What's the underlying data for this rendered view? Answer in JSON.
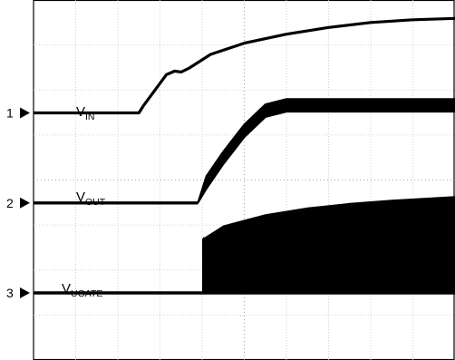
{
  "chart_data": {
    "type": "line",
    "title": "",
    "xlabel": "",
    "ylabel": "",
    "grid": true,
    "x_divisions": 10,
    "y_divisions": 8,
    "x_range": [
      0,
      10
    ],
    "y_range": [
      0,
      8
    ],
    "channels": [
      {
        "marker": "1",
        "label_main": "V",
        "label_sub": "IN",
        "color": "#000000",
        "baseline_div": 5.45,
        "points": [
          [
            0,
            5.45
          ],
          [
            2.5,
            5.45
          ],
          [
            2.6,
            5.6
          ],
          [
            3.15,
            6.3
          ],
          [
            3.35,
            6.38
          ],
          [
            3.5,
            6.36
          ],
          [
            3.7,
            6.45
          ],
          [
            4.2,
            6.75
          ],
          [
            5.0,
            7.0
          ],
          [
            6.0,
            7.2
          ],
          [
            7.0,
            7.35
          ],
          [
            8.0,
            7.46
          ],
          [
            9.0,
            7.52
          ],
          [
            10.0,
            7.55
          ]
        ]
      },
      {
        "marker": "2",
        "label_main": "V",
        "label_sub": "OUT",
        "color": "#000000",
        "baseline_div": 3.45,
        "envelope_points": [
          [
            3.9,
            3.45
          ],
          [
            4.1,
            3.9
          ],
          [
            4.5,
            4.45
          ],
          [
            5.0,
            5.05
          ],
          [
            5.5,
            5.5
          ],
          [
            6.0,
            5.62
          ],
          [
            10.0,
            5.62
          ]
        ],
        "band_width_div": 0.28,
        "points": [
          [
            0,
            3.45
          ],
          [
            3.9,
            3.45
          ]
        ]
      },
      {
        "marker": "3",
        "label_main": "V",
        "label_sub": "UGATE",
        "color": "#000000",
        "baseline_div": 1.45,
        "burst_start_div": 4.0,
        "envelope_top": [
          [
            4.0,
            2.65
          ],
          [
            4.5,
            2.95
          ],
          [
            5.5,
            3.2
          ],
          [
            6.5,
            3.35
          ],
          [
            7.5,
            3.45
          ],
          [
            8.5,
            3.52
          ],
          [
            10.0,
            3.6
          ]
        ],
        "points": [
          [
            0,
            1.45
          ],
          [
            10.0,
            1.45
          ]
        ]
      }
    ]
  }
}
